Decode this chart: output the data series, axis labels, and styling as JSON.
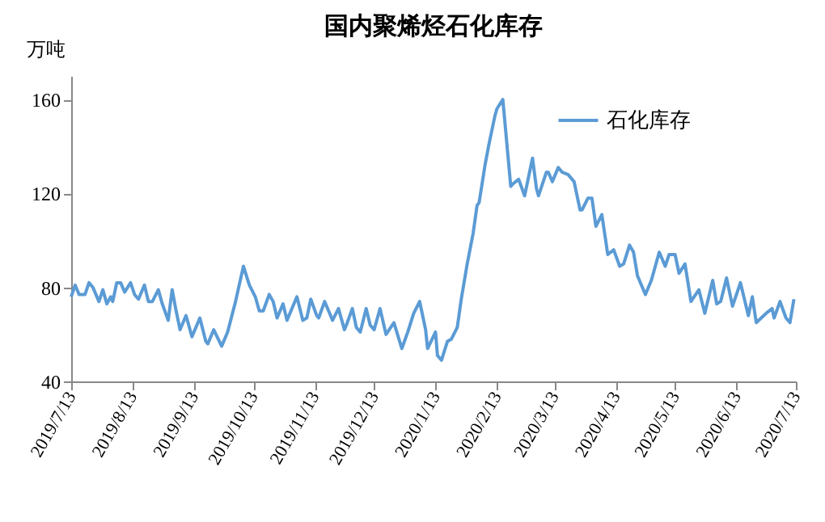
{
  "chart_data": {
    "type": "line",
    "title": "国内聚烯烃石化库存",
    "ylabel": "万吨",
    "xlim": [
      "2019-07-13",
      "2020-07-13"
    ],
    "ylim": [
      40,
      170
    ],
    "yticks": [
      40,
      80,
      120,
      160
    ],
    "xticks": [
      {
        "value": "2019-07-13",
        "label": "2019/7/13"
      },
      {
        "value": "2019-08-13",
        "label": "2019/8/13"
      },
      {
        "value": "2019-09-13",
        "label": "2019/9/13"
      },
      {
        "value": "2019-10-13",
        "label": "2019/10/13"
      },
      {
        "value": "2019-11-13",
        "label": "2019/11/13"
      },
      {
        "value": "2019-12-13",
        "label": "2019/12/13"
      },
      {
        "value": "2020-01-13",
        "label": "2020/1/13"
      },
      {
        "value": "2020-02-13",
        "label": "2020/2/13"
      },
      {
        "value": "2020-03-13",
        "label": "2020/3/13"
      },
      {
        "value": "2020-04-13",
        "label": "2020/4/13"
      },
      {
        "value": "2020-05-13",
        "label": "2020/5/13"
      },
      {
        "value": "2020-06-13",
        "label": "2020/6/13"
      },
      {
        "value": "2020-07-13",
        "label": "2020/7/13"
      }
    ],
    "x": [
      "2019-07-13",
      "2019-07-15",
      "2019-07-17",
      "2019-07-20",
      "2019-07-22",
      "2019-07-24",
      "2019-07-27",
      "2019-07-29",
      "2019-07-31",
      "2019-08-02",
      "2019-08-03",
      "2019-08-05",
      "2019-08-07",
      "2019-08-09",
      "2019-08-12",
      "2019-08-14",
      "2019-08-16",
      "2019-08-19",
      "2019-08-21",
      "2019-08-23",
      "2019-08-26",
      "2019-08-28",
      "2019-08-31",
      "2019-09-02",
      "2019-09-04",
      "2019-09-06",
      "2019-09-09",
      "2019-09-12",
      "2019-09-16",
      "2019-09-19",
      "2019-09-20",
      "2019-09-23",
      "2019-09-27",
      "2019-09-30",
      "2019-10-04",
      "2019-10-08",
      "2019-10-11",
      "2019-10-14",
      "2019-10-16",
      "2019-10-18",
      "2019-10-21",
      "2019-10-23",
      "2019-10-25",
      "2019-10-28",
      "2019-10-30",
      "2019-11-04",
      "2019-11-07",
      "2019-11-09",
      "2019-11-11",
      "2019-11-14",
      "2019-11-15",
      "2019-11-18",
      "2019-11-21",
      "2019-11-22",
      "2019-11-25",
      "2019-11-28",
      "2019-11-29",
      "2019-12-02",
      "2019-12-04",
      "2019-12-06",
      "2019-12-09",
      "2019-12-11",
      "2019-12-13",
      "2019-12-16",
      "2019-12-19",
      "2019-12-23",
      "2019-12-27",
      "2019-12-30",
      "2020-01-02",
      "2020-01-05",
      "2020-01-08",
      "2020-01-09",
      "2020-01-13",
      "2020-01-14",
      "2020-01-16",
      "2020-01-19",
      "2020-01-21",
      "2020-01-24",
      "2020-01-26",
      "2020-01-29",
      "2020-02-01",
      "2020-02-03",
      "2020-02-04",
      "2020-02-07",
      "2020-02-09",
      "2020-02-12",
      "2020-02-13",
      "2020-02-16",
      "2020-02-20",
      "2020-02-21",
      "2020-02-24",
      "2020-02-27",
      "2020-02-29",
      "2020-03-02",
      "2020-03-04",
      "2020-03-05",
      "2020-03-09",
      "2020-03-10",
      "2020-03-12",
      "2020-03-15",
      "2020-03-17",
      "2020-03-20",
      "2020-03-23",
      "2020-03-26",
      "2020-03-27",
      "2020-03-30",
      "2020-04-01",
      "2020-04-03",
      "2020-04-06",
      "2020-04-09",
      "2020-04-12",
      "2020-04-15",
      "2020-04-17",
      "2020-04-20",
      "2020-04-22",
      "2020-04-24",
      "2020-04-28",
      "2020-05-01",
      "2020-05-05",
      "2020-05-08",
      "2020-05-10",
      "2020-05-13",
      "2020-05-15",
      "2020-05-18",
      "2020-05-21",
      "2020-05-25",
      "2020-05-28",
      "2020-06-01",
      "2020-06-03",
      "2020-06-05",
      "2020-06-08",
      "2020-06-11",
      "2020-06-15",
      "2020-06-19",
      "2020-06-21",
      "2020-06-23",
      "2020-06-28",
      "2020-07-01",
      "2020-07-02",
      "2020-07-05",
      "2020-07-08",
      "2020-07-10",
      "2020-07-12"
    ],
    "series": [
      {
        "name": "石化库存",
        "color": "#5b9bd5",
        "values": [
          76,
          81,
          77,
          77,
          82,
          80,
          74,
          79,
          73,
          76,
          74,
          82,
          82,
          78,
          82,
          77,
          75,
          81,
          74,
          74,
          79,
          73,
          66,
          79,
          70,
          62,
          68,
          59,
          67,
          57,
          56,
          62,
          55,
          61,
          74,
          89,
          81,
          76,
          70,
          70,
          77,
          74,
          67,
          73,
          66,
          76,
          66,
          67,
          75,
          68,
          67,
          74,
          68,
          66,
          71,
          62,
          64,
          71,
          63,
          61,
          71,
          64,
          62,
          71,
          60,
          65,
          54,
          61,
          69,
          74,
          62,
          54,
          61,
          51,
          49,
          57,
          58,
          63,
          75,
          90,
          103,
          115,
          116,
          132,
          141,
          153,
          156,
          160,
          123,
          124,
          126,
          119,
          127,
          135,
          122,
          119,
          129,
          129,
          125,
          131,
          129,
          128,
          125,
          113,
          113,
          118,
          118,
          106,
          111,
          94,
          96,
          89,
          90,
          98,
          95,
          85,
          77,
          83,
          95,
          89,
          94,
          94,
          86,
          90,
          74,
          79,
          69,
          83,
          73,
          74,
          84,
          72,
          82,
          68,
          76,
          65,
          69,
          71,
          67,
          74,
          67,
          65,
          75
        ]
      }
    ],
    "legend": "top right",
    "grid": false
  }
}
